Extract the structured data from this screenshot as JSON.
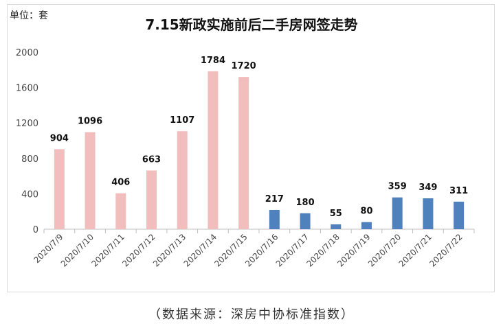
{
  "chart_data": {
    "type": "bar",
    "title": "7.15新政实施前后二手房网签走势",
    "unit_label": "单位：套",
    "source_note": "（数据来源：深房中协标准指数）",
    "xlabel": "",
    "ylabel": "",
    "ylim": [
      0,
      2000
    ],
    "yticks": [
      0,
      400,
      800,
      1200,
      1600,
      2000
    ],
    "grid": false,
    "categories": [
      "2020/7/9",
      "2020/7/10",
      "2020/7/11",
      "2020/7/12",
      "2020/7/13",
      "2020/7/14",
      "2020/7/15",
      "2020/7/16",
      "2020/7/17",
      "2020/7/18",
      "2020/7/19",
      "2020/7/20",
      "2020/7/21",
      "2020/7/22"
    ],
    "values": [
      904,
      1096,
      406,
      663,
      1107,
      1784,
      1720,
      217,
      180,
      55,
      80,
      359,
      349,
      311
    ],
    "colors": {
      "before": "#f2bdbd",
      "after": "#4f81bd"
    },
    "color_split_index": 7
  }
}
